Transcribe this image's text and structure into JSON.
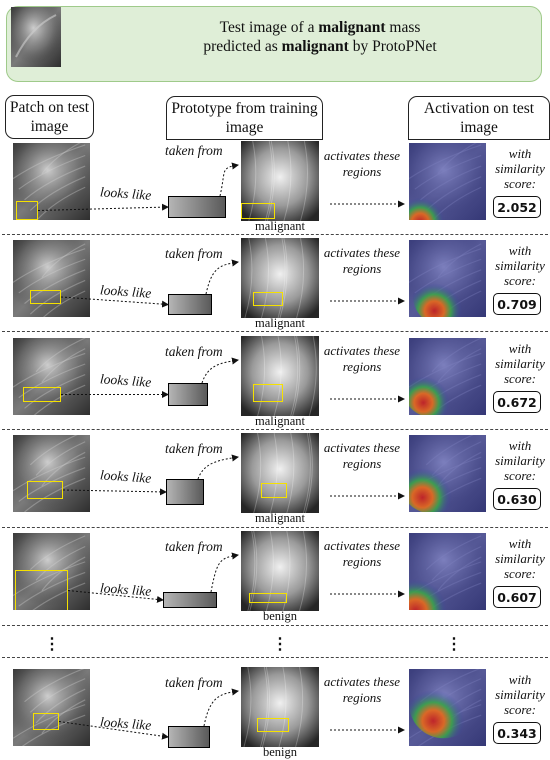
{
  "header": {
    "line1_pre": "Test image of a ",
    "line1_bold": "malignant",
    "line1_post": " mass",
    "line2_pre": "predicted as ",
    "line2_bold": "malignant",
    "line2_post": " by ProtoPNet"
  },
  "columns": {
    "patch": "Patch on test image",
    "prototype": "Prototype from training image",
    "activation": "Activation on test image"
  },
  "labels": {
    "looks_like": "looks like",
    "taken_from": "taken from",
    "activates": "activates these regions",
    "similarity": "with similarity score:",
    "ellipsis": "⋮"
  },
  "rows": [
    {
      "class": "malignant",
      "score": "2.052"
    },
    {
      "class": "malignant",
      "score": "0.709"
    },
    {
      "class": "malignant",
      "score": "0.672"
    },
    {
      "class": "malignant",
      "score": "0.630"
    },
    {
      "class": "benign",
      "score": "0.607"
    },
    {
      "class": "benign",
      "score": "0.343"
    }
  ],
  "colors": {
    "banner_bg": "#dfeed7",
    "banner_border": "#9fca8a",
    "highlight_box": "#f5e100"
  }
}
